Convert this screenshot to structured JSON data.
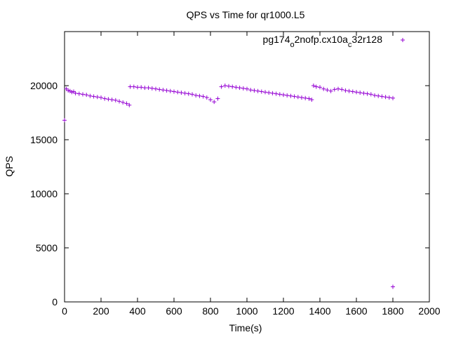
{
  "chart_data": {
    "type": "scatter",
    "title": "QPS vs Time for qr1000.L5",
    "xlabel": "Time(s)",
    "ylabel": "QPS",
    "xlim": [
      0,
      2000
    ],
    "ylim": [
      0,
      25000
    ],
    "xticks": [
      0,
      200,
      400,
      600,
      800,
      1000,
      1200,
      1400,
      1600,
      1800,
      2000
    ],
    "yticks": [
      0,
      5000,
      10000,
      15000,
      20000
    ],
    "legend": {
      "position": "top-right",
      "label_parts": [
        "pg174",
        "o",
        "2nofp.cx10a",
        "c",
        "32r128"
      ]
    },
    "marker": "+",
    "color": "#9400d3",
    "grid": false,
    "series": [
      {
        "name": "pg174_o2nofp.cx10a_c32r128",
        "points": [
          [
            0,
            16800
          ],
          [
            10,
            19700
          ],
          [
            20,
            19550
          ],
          [
            30,
            19500
          ],
          [
            40,
            19400
          ],
          [
            50,
            19450
          ],
          [
            60,
            19300
          ],
          [
            80,
            19250
          ],
          [
            100,
            19200
          ],
          [
            120,
            19150
          ],
          [
            140,
            19050
          ],
          [
            160,
            19000
          ],
          [
            180,
            18950
          ],
          [
            200,
            18900
          ],
          [
            220,
            18800
          ],
          [
            240,
            18750
          ],
          [
            260,
            18700
          ],
          [
            280,
            18650
          ],
          [
            300,
            18550
          ],
          [
            320,
            18450
          ],
          [
            340,
            18350
          ],
          [
            355,
            18200
          ],
          [
            360,
            19900
          ],
          [
            380,
            19900
          ],
          [
            400,
            19850
          ],
          [
            420,
            19850
          ],
          [
            440,
            19800
          ],
          [
            460,
            19800
          ],
          [
            480,
            19750
          ],
          [
            500,
            19700
          ],
          [
            520,
            19650
          ],
          [
            540,
            19600
          ],
          [
            560,
            19550
          ],
          [
            580,
            19500
          ],
          [
            600,
            19450
          ],
          [
            620,
            19400
          ],
          [
            640,
            19350
          ],
          [
            660,
            19300
          ],
          [
            680,
            19250
          ],
          [
            700,
            19200
          ],
          [
            720,
            19100
          ],
          [
            740,
            19050
          ],
          [
            760,
            19000
          ],
          [
            780,
            18900
          ],
          [
            800,
            18700
          ],
          [
            820,
            18500
          ],
          [
            840,
            18800
          ],
          [
            860,
            19900
          ],
          [
            880,
            20000
          ],
          [
            900,
            19950
          ],
          [
            920,
            19900
          ],
          [
            940,
            19850
          ],
          [
            960,
            19800
          ],
          [
            980,
            19750
          ],
          [
            1000,
            19700
          ],
          [
            1020,
            19600
          ],
          [
            1040,
            19550
          ],
          [
            1060,
            19500
          ],
          [
            1080,
            19450
          ],
          [
            1100,
            19400
          ],
          [
            1120,
            19350
          ],
          [
            1140,
            19300
          ],
          [
            1160,
            19250
          ],
          [
            1180,
            19200
          ],
          [
            1200,
            19150
          ],
          [
            1220,
            19100
          ],
          [
            1240,
            19050
          ],
          [
            1260,
            19000
          ],
          [
            1280,
            18950
          ],
          [
            1300,
            18900
          ],
          [
            1320,
            18850
          ],
          [
            1340,
            18800
          ],
          [
            1355,
            18700
          ],
          [
            1365,
            20000
          ],
          [
            1380,
            19900
          ],
          [
            1400,
            19850
          ],
          [
            1420,
            19700
          ],
          [
            1440,
            19600
          ],
          [
            1460,
            19500
          ],
          [
            1480,
            19650
          ],
          [
            1500,
            19700
          ],
          [
            1520,
            19650
          ],
          [
            1540,
            19550
          ],
          [
            1560,
            19500
          ],
          [
            1580,
            19450
          ],
          [
            1600,
            19400
          ],
          [
            1620,
            19350
          ],
          [
            1640,
            19300
          ],
          [
            1660,
            19250
          ],
          [
            1680,
            19200
          ],
          [
            1700,
            19100
          ],
          [
            1720,
            19050
          ],
          [
            1740,
            19000
          ],
          [
            1760,
            18950
          ],
          [
            1780,
            18900
          ],
          [
            1800,
            18850
          ],
          [
            1800,
            1400
          ]
        ]
      }
    ]
  }
}
